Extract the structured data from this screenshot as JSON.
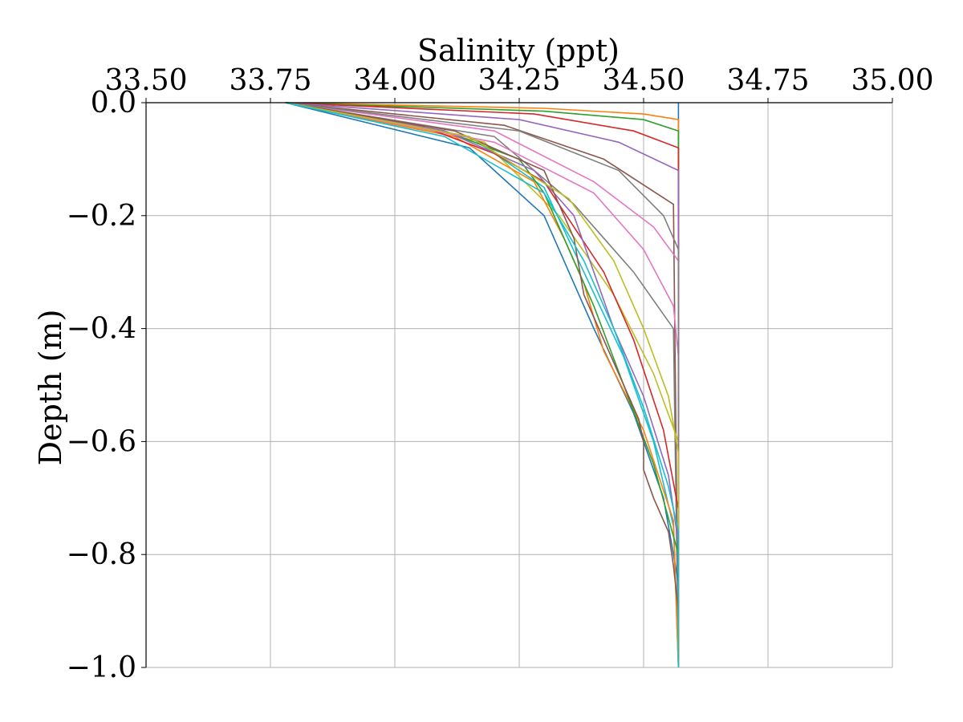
{
  "chart_data": {
    "type": "line",
    "title": "",
    "xlabel": "Salinity (ppt)",
    "ylabel": "Depth (m)",
    "xlim": [
      33.5,
      35.0
    ],
    "ylim": [
      -1.0,
      0.0
    ],
    "x_axis_position": "top",
    "grid": true,
    "legend": "none",
    "xticks": [
      33.5,
      33.75,
      34.0,
      34.25,
      34.5,
      34.75,
      35.0
    ],
    "xtick_labels": [
      "33.50",
      "33.75",
      "34.00",
      "34.25",
      "34.50",
      "34.75",
      "35.00"
    ],
    "yticks": [
      0.0,
      -0.2,
      -0.4,
      -0.6,
      -0.8,
      -1.0
    ],
    "ytick_labels": [
      "0.0",
      "−0.2",
      "−0.4",
      "−0.6",
      "−0.8",
      "−1.0"
    ],
    "colors": [
      "#1f77b4",
      "#ff7f0e",
      "#2ca02c",
      "#d62728",
      "#9467bd",
      "#8c564b",
      "#e377c2",
      "#7f7f7f",
      "#bcbd22",
      "#17becf"
    ],
    "series": [
      {
        "values": [
          [
            34.57,
            0.0
          ],
          [
            34.57,
            -0.005
          ],
          [
            34.57,
            -1.0
          ]
        ]
      },
      {
        "values": [
          [
            33.78,
            0.0
          ],
          [
            34.3,
            -0.01
          ],
          [
            34.5,
            -0.02
          ],
          [
            34.57,
            -0.03
          ],
          [
            34.57,
            -1.0
          ]
        ]
      },
      {
        "values": [
          [
            33.78,
            0.0
          ],
          [
            34.3,
            -0.015
          ],
          [
            34.5,
            -0.03
          ],
          [
            34.57,
            -0.05
          ],
          [
            34.57,
            -1.0
          ]
        ]
      },
      {
        "values": [
          [
            33.78,
            0.0
          ],
          [
            34.28,
            -0.02
          ],
          [
            34.48,
            -0.05
          ],
          [
            34.57,
            -0.08
          ],
          [
            34.57,
            -1.0
          ]
        ]
      },
      {
        "values": [
          [
            33.78,
            0.0
          ],
          [
            34.25,
            -0.03
          ],
          [
            34.45,
            -0.07
          ],
          [
            34.57,
            -0.12
          ],
          [
            34.57,
            -1.0
          ]
        ]
      },
      {
        "values": [
          [
            33.78,
            0.0
          ],
          [
            34.22,
            -0.04
          ],
          [
            34.42,
            -0.1
          ],
          [
            34.56,
            -0.18
          ],
          [
            34.57,
            -1.0
          ]
        ]
      },
      {
        "values": [
          [
            33.78,
            0.0
          ],
          [
            34.2,
            -0.05
          ],
          [
            34.4,
            -0.14
          ],
          [
            34.52,
            -0.22
          ],
          [
            34.57,
            -0.28
          ],
          [
            34.57,
            -1.0
          ]
        ]
      },
      {
        "values": [
          [
            33.78,
            0.0
          ],
          [
            34.2,
            -0.06
          ],
          [
            34.36,
            -0.18
          ],
          [
            34.48,
            -0.3
          ],
          [
            34.56,
            -0.4
          ],
          [
            34.57,
            -1.0
          ]
        ]
      },
      {
        "values": [
          [
            33.78,
            0.0
          ],
          [
            34.18,
            -0.07
          ],
          [
            34.33,
            -0.2
          ],
          [
            34.44,
            -0.34
          ],
          [
            34.52,
            -0.48
          ],
          [
            34.57,
            -0.6
          ],
          [
            34.57,
            -1.0
          ]
        ]
      },
      {
        "values": [
          [
            33.78,
            0.0
          ],
          [
            34.15,
            -0.06
          ],
          [
            34.3,
            -0.15
          ],
          [
            34.38,
            -0.3
          ],
          [
            34.46,
            -0.45
          ],
          [
            34.52,
            -0.6
          ],
          [
            34.56,
            -0.75
          ],
          [
            34.57,
            -1.0
          ]
        ]
      },
      {
        "values": [
          [
            33.78,
            0.0
          ],
          [
            34.15,
            -0.08
          ],
          [
            34.3,
            -0.2
          ],
          [
            34.37,
            -0.34
          ],
          [
            34.4,
            -0.4
          ],
          [
            34.48,
            -0.55
          ],
          [
            34.54,
            -0.7
          ],
          [
            34.57,
            -0.85
          ],
          [
            34.57,
            -1.0
          ]
        ]
      },
      {
        "values": [
          [
            33.78,
            0.0
          ],
          [
            34.12,
            -0.06
          ],
          [
            34.28,
            -0.14
          ],
          [
            34.34,
            -0.24
          ],
          [
            34.38,
            -0.32
          ],
          [
            34.42,
            -0.44
          ],
          [
            34.5,
            -0.58
          ],
          [
            34.56,
            -0.74
          ],
          [
            34.57,
            -1.0
          ]
        ]
      },
      {
        "values": [
          [
            33.78,
            0.0
          ],
          [
            34.1,
            -0.05
          ],
          [
            34.25,
            -0.1
          ],
          [
            34.3,
            -0.16
          ],
          [
            34.35,
            -0.26
          ],
          [
            34.4,
            -0.36
          ],
          [
            34.46,
            -0.5
          ],
          [
            34.52,
            -0.64
          ],
          [
            34.57,
            -0.8
          ],
          [
            34.57,
            -1.0
          ]
        ]
      },
      {
        "values": [
          [
            33.78,
            0.0
          ],
          [
            34.05,
            -0.04
          ],
          [
            34.2,
            -0.09
          ],
          [
            34.3,
            -0.14
          ],
          [
            34.36,
            -0.22
          ],
          [
            34.42,
            -0.3
          ],
          [
            34.48,
            -0.42
          ],
          [
            34.54,
            -0.58
          ],
          [
            34.57,
            -0.72
          ],
          [
            34.57,
            -1.0
          ]
        ]
      },
      {
        "values": [
          [
            33.78,
            0.0
          ],
          [
            34.1,
            -0.05
          ],
          [
            34.28,
            -0.12
          ],
          [
            34.36,
            -0.2
          ],
          [
            34.4,
            -0.3
          ],
          [
            34.44,
            -0.4
          ],
          [
            34.5,
            -0.52
          ],
          [
            34.55,
            -0.66
          ],
          [
            34.57,
            -0.78
          ],
          [
            34.57,
            -1.0
          ]
        ]
      },
      {
        "values": [
          [
            33.78,
            0.0
          ],
          [
            34.12,
            -0.05
          ],
          [
            34.3,
            -0.12
          ],
          [
            34.36,
            -0.24
          ],
          [
            34.38,
            -0.34
          ],
          [
            34.4,
            -0.38
          ],
          [
            34.44,
            -0.46
          ],
          [
            34.49,
            -0.56
          ],
          [
            34.5,
            -0.6
          ],
          [
            34.5,
            -0.65
          ],
          [
            34.52,
            -0.7
          ],
          [
            34.55,
            -0.76
          ],
          [
            34.56,
            -0.82
          ],
          [
            34.57,
            -0.9
          ],
          [
            34.57,
            -1.0
          ]
        ]
      },
      {
        "values": [
          [
            33.78,
            0.0
          ],
          [
            34.2,
            -0.07
          ],
          [
            34.4,
            -0.16
          ],
          [
            34.5,
            -0.26
          ],
          [
            34.56,
            -0.36
          ],
          [
            34.57,
            -0.45
          ],
          [
            34.57,
            -1.0
          ]
        ]
      },
      {
        "values": [
          [
            33.78,
            0.0
          ],
          [
            34.25,
            -0.05
          ],
          [
            34.45,
            -0.12
          ],
          [
            34.54,
            -0.2
          ],
          [
            34.57,
            -0.26
          ],
          [
            34.57,
            -1.0
          ]
        ]
      },
      {
        "values": [
          [
            33.78,
            0.0
          ],
          [
            34.15,
            -0.06
          ],
          [
            34.35,
            -0.17
          ],
          [
            34.44,
            -0.28
          ],
          [
            34.5,
            -0.4
          ],
          [
            34.55,
            -0.52
          ],
          [
            34.57,
            -0.62
          ],
          [
            34.57,
            -1.0
          ]
        ]
      },
      {
        "values": [
          [
            33.78,
            0.0
          ],
          [
            34.1,
            -0.06
          ],
          [
            34.3,
            -0.16
          ],
          [
            34.38,
            -0.28
          ],
          [
            34.44,
            -0.4
          ],
          [
            34.5,
            -0.54
          ],
          [
            34.55,
            -0.68
          ],
          [
            34.57,
            -0.76
          ],
          [
            34.57,
            -1.0
          ]
        ]
      }
    ]
  }
}
